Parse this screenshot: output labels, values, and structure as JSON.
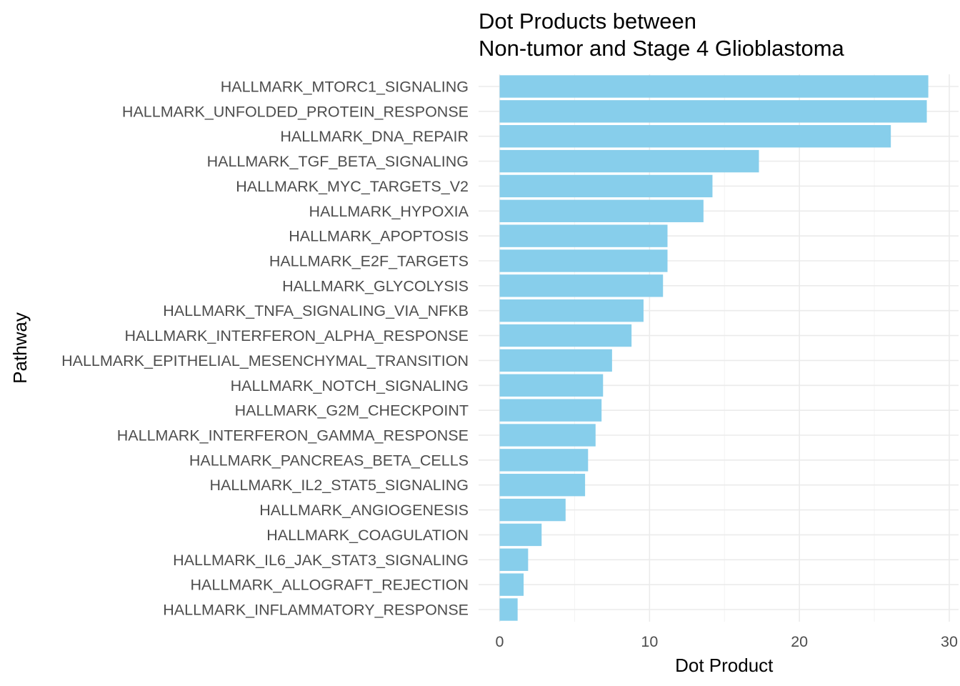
{
  "chart_data": {
    "type": "bar",
    "orientation": "horizontal",
    "title": "Dot Products between\nNon-tumor and Stage 4 Glioblastoma",
    "xlabel": "Dot Product",
    "ylabel": "Pathway",
    "xlim": [
      0,
      30
    ],
    "xticks": [
      0,
      10,
      20,
      30
    ],
    "grid": true,
    "bar_color": "#87CEEB",
    "categories": [
      "HALLMARK_MTORC1_SIGNALING",
      "HALLMARK_UNFOLDED_PROTEIN_RESPONSE",
      "HALLMARK_DNA_REPAIR",
      "HALLMARK_TGF_BETA_SIGNALING",
      "HALLMARK_MYC_TARGETS_V2",
      "HALLMARK_HYPOXIA",
      "HALLMARK_APOPTOSIS",
      "HALLMARK_E2F_TARGETS",
      "HALLMARK_GLYCOLYSIS",
      "HALLMARK_TNFA_SIGNALING_VIA_NFKB",
      "HALLMARK_INTERFERON_ALPHA_RESPONSE",
      "HALLMARK_EPITHELIAL_MESENCHYMAL_TRANSITION",
      "HALLMARK_NOTCH_SIGNALING",
      "HALLMARK_G2M_CHECKPOINT",
      "HALLMARK_INTERFERON_GAMMA_RESPONSE",
      "HALLMARK_PANCREAS_BETA_CELLS",
      "HALLMARK_IL2_STAT5_SIGNALING",
      "HALLMARK_ANGIOGENESIS",
      "HALLMARK_COAGULATION",
      "HALLMARK_IL6_JAK_STAT3_SIGNALING",
      "HALLMARK_ALLOGRAFT_REJECTION",
      "HALLMARK_INFLAMMATORY_RESPONSE"
    ],
    "values": [
      28.6,
      28.5,
      26.1,
      17.3,
      14.2,
      13.6,
      11.2,
      11.2,
      10.9,
      9.6,
      8.8,
      7.5,
      6.9,
      6.8,
      6.4,
      5.9,
      5.7,
      4.4,
      2.8,
      1.9,
      1.6,
      1.2
    ]
  }
}
